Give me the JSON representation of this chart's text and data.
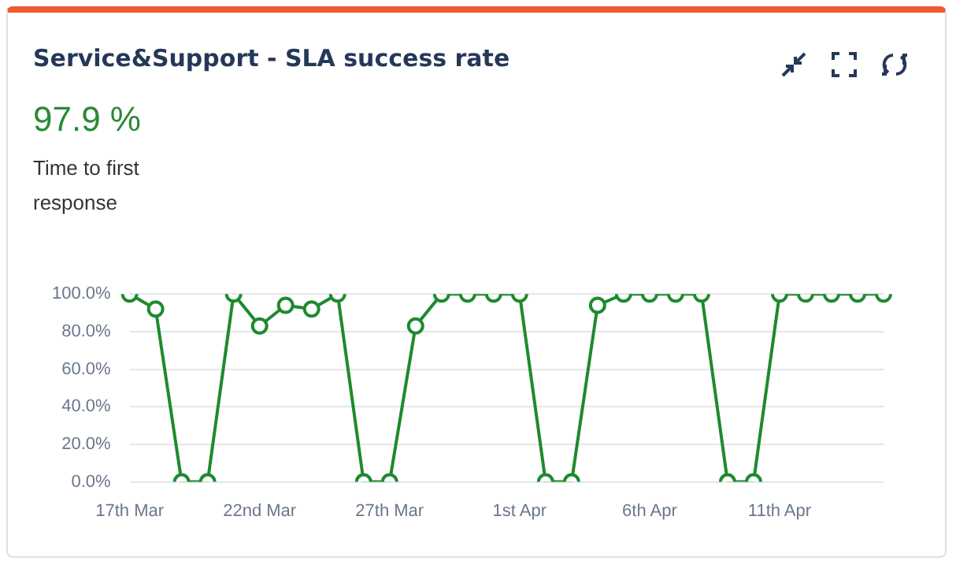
{
  "chart_data": {
    "type": "line",
    "title": "Service&Support - SLA success rate",
    "subtitle": "97.9 %",
    "annotations": [
      "Time to first response"
    ],
    "categories": [
      "17th Mar",
      null,
      null,
      null,
      null,
      "22nd Mar",
      null,
      null,
      null,
      null,
      "27th Mar",
      null,
      null,
      null,
      null,
      "1st Apr",
      null,
      null,
      null,
      null,
      "6th Apr",
      null,
      null,
      null,
      null,
      "11th Apr",
      null,
      null,
      null,
      null
    ],
    "series": [
      {
        "color": "#1e8a2e",
        "values": [
          100,
          92,
          0,
          0,
          100,
          83,
          94,
          92,
          100,
          0,
          0,
          83,
          100,
          100,
          100,
          100,
          0,
          0,
          94,
          100,
          100,
          100,
          100,
          0,
          0,
          100,
          100,
          100,
          100,
          100
        ]
      }
    ],
    "ylim": [
      0,
      100
    ],
    "yticks": [
      {
        "value": 0,
        "label": "0.0%"
      },
      {
        "value": 20,
        "label": "20.0%"
      },
      {
        "value": 40,
        "label": "40.0%"
      },
      {
        "value": 60,
        "label": "60.0%"
      },
      {
        "value": 80,
        "label": "80.0%"
      },
      {
        "value": 100,
        "label": "100.0%"
      }
    ],
    "grid": "y",
    "marker": "circle",
    "line_style": "solid",
    "legend": false
  }
}
